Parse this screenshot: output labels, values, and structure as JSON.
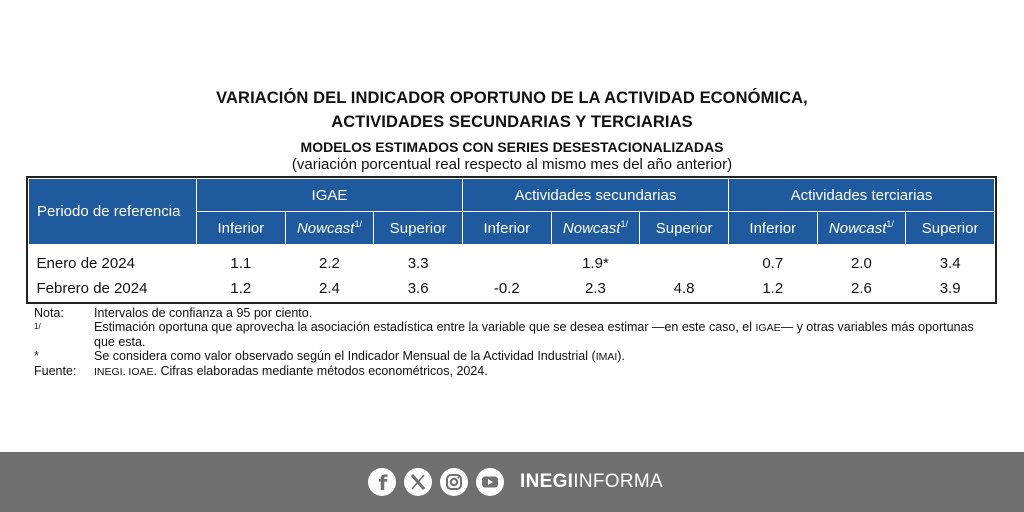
{
  "title": {
    "line1": "VARIACIÓN DEL INDICADOR OPORTUNO DE LA ACTIVIDAD ECONÓMICA,",
    "line2": "ACTIVIDADES SECUNDARIAS Y TERCIARIAS",
    "subtitle": "MODELOS ESTIMADOS CON SERIES DESESTACIONALIZADAS",
    "units": "(variación porcentual real respecto al mismo mes del año anterior)"
  },
  "table": {
    "period_header": "Periodo de referencia",
    "groups": [
      "IGAE",
      "Actividades secundarias",
      "Actividades terciarias"
    ],
    "sub_inferior": "Inferior",
    "sub_nowcast": "Nowcast",
    "sub_nowcast_note": "1/",
    "sub_superior": "Superior",
    "rows": [
      {
        "period": "Enero de 2024",
        "values": [
          "1.1",
          "2.2",
          "3.3",
          "",
          "1.9*",
          "",
          "0.7",
          "2.0",
          "3.4"
        ]
      },
      {
        "period": "Febrero de 2024",
        "values": [
          "1.2",
          "2.4",
          "3.6",
          "-0.2",
          "2.3",
          "4.8",
          "1.2",
          "2.6",
          "3.9"
        ]
      }
    ]
  },
  "notes": {
    "nota_key": "Nota:",
    "nota_text": "Intervalos de confianza a 95 por ciento.",
    "n1_key": "1/",
    "n1_text_a": "Estimación oportuna que aprovecha la asociación estadística entre la variable que se desea estimar —en este caso, el ",
    "n1_igae": "IGAE",
    "n1_text_b": "— y otras variables más oportunas que esta.",
    "star_key": "*",
    "star_text_a": "Se considera como valor observado según el Indicador Mensual de la Actividad Industrial (",
    "star_imai": "IMAI",
    "star_text_b": ").",
    "fuente_key": "Fuente:",
    "fuente_inegi": "INEGI. IOAE",
    "fuente_text": ". Cifras elaboradas mediante métodos econométricos, 2024."
  },
  "footer": {
    "icons": [
      "facebook-icon",
      "x-icon",
      "instagram-icon",
      "youtube-icon"
    ],
    "brand_bold": "INEGI",
    "brand_light": "INFORMA"
  }
}
